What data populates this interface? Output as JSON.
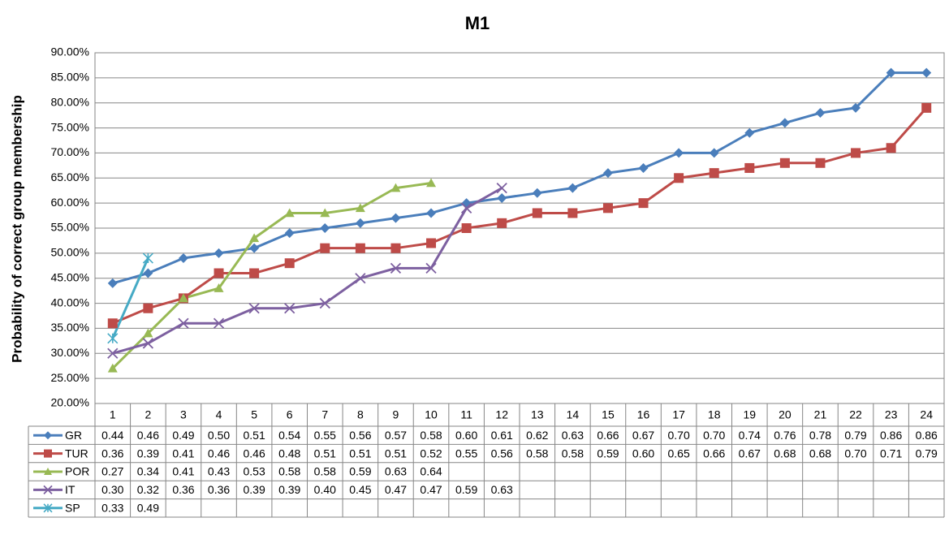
{
  "chart_data": {
    "type": "line",
    "title": "M1",
    "y_label": "Probability of correct group membership",
    "categories": [
      "1",
      "2",
      "3",
      "4",
      "5",
      "6",
      "7",
      "8",
      "9",
      "10",
      "11",
      "12",
      "13",
      "14",
      "15",
      "16",
      "17",
      "18",
      "19",
      "20",
      "21",
      "22",
      "23",
      "24"
    ],
    "ylim": [
      0.2,
      0.9
    ],
    "yticks": [
      {
        "value": 0.2,
        "label": "20.00%"
      },
      {
        "value": 0.25,
        "label": "25.00%"
      },
      {
        "value": 0.3,
        "label": "30.00%"
      },
      {
        "value": 0.35,
        "label": "35.00%"
      },
      {
        "value": 0.4,
        "label": "40.00%"
      },
      {
        "value": 0.45,
        "label": "45.00%"
      },
      {
        "value": 0.5,
        "label": "50.00%"
      },
      {
        "value": 0.55,
        "label": "55.00%"
      },
      {
        "value": 0.6,
        "label": "60.00%"
      },
      {
        "value": 0.65,
        "label": "65.00%"
      },
      {
        "value": 0.7,
        "label": "70.00%"
      },
      {
        "value": 0.75,
        "label": "75.00%"
      },
      {
        "value": 0.8,
        "label": "80.00%"
      },
      {
        "value": 0.85,
        "label": "85.00%"
      },
      {
        "value": 0.9,
        "label": "90.00%"
      }
    ],
    "grid": true,
    "series": [
      {
        "name": "GR",
        "color": "#4a7ebb",
        "marker": "diamond",
        "values": [
          0.44,
          0.46,
          0.49,
          0.5,
          0.51,
          0.54,
          0.55,
          0.56,
          0.57,
          0.58,
          0.6,
          0.61,
          0.62,
          0.63,
          0.66,
          0.67,
          0.7,
          0.7,
          0.74,
          0.76,
          0.78,
          0.79,
          0.86,
          0.86
        ],
        "value_labels": [
          "0.44",
          "0.46",
          "0.49",
          "0.50",
          "0.51",
          "0.54",
          "0.55",
          "0.56",
          "0.57",
          "0.58",
          "0.60",
          "0.61",
          "0.62",
          "0.63",
          "0.66",
          "0.67",
          "0.70",
          "0.70",
          "0.74",
          "0.76",
          "0.78",
          "0.79",
          "0.86",
          "0.86"
        ]
      },
      {
        "name": "TUR",
        "color": "#be4b48",
        "marker": "square",
        "values": [
          0.36,
          0.39,
          0.41,
          0.46,
          0.46,
          0.48,
          0.51,
          0.51,
          0.51,
          0.52,
          0.55,
          0.56,
          0.58,
          0.58,
          0.59,
          0.6,
          0.65,
          0.66,
          0.67,
          0.68,
          0.68,
          0.7,
          0.71,
          0.79
        ],
        "value_labels": [
          "0.36",
          "0.39",
          "0.41",
          "0.46",
          "0.46",
          "0.48",
          "0.51",
          "0.51",
          "0.51",
          "0.52",
          "0.55",
          "0.56",
          "0.58",
          "0.58",
          "0.59",
          "0.60",
          "0.65",
          "0.66",
          "0.67",
          "0.68",
          "0.68",
          "0.70",
          "0.71",
          "0.79"
        ]
      },
      {
        "name": "POR",
        "color": "#98b954",
        "marker": "triangle",
        "values": [
          0.27,
          0.34,
          0.41,
          0.43,
          0.53,
          0.58,
          0.58,
          0.59,
          0.63,
          0.64,
          null,
          null,
          null,
          null,
          null,
          null,
          null,
          null,
          null,
          null,
          null,
          null,
          null,
          null
        ],
        "value_labels": [
          "0.27",
          "0.34",
          "0.41",
          "0.43",
          "0.53",
          "0.58",
          "0.58",
          "0.59",
          "0.63",
          "0.64",
          null,
          null,
          null,
          null,
          null,
          null,
          null,
          null,
          null,
          null,
          null,
          null,
          null,
          null
        ]
      },
      {
        "name": "IT",
        "color": "#7d60a0",
        "marker": "x",
        "values": [
          0.3,
          0.32,
          0.36,
          0.36,
          0.39,
          0.39,
          0.4,
          0.45,
          0.47,
          0.47,
          0.59,
          0.63,
          null,
          null,
          null,
          null,
          null,
          null,
          null,
          null,
          null,
          null,
          null,
          null
        ],
        "value_labels": [
          "0.30",
          "0.32",
          "0.36",
          "0.36",
          "0.39",
          "0.39",
          "0.40",
          "0.45",
          "0.47",
          "0.47",
          "0.59",
          "0.63",
          null,
          null,
          null,
          null,
          null,
          null,
          null,
          null,
          null,
          null,
          null,
          null
        ]
      },
      {
        "name": "SP",
        "color": "#46aac5",
        "marker": "star",
        "values": [
          0.33,
          0.49,
          null,
          null,
          null,
          null,
          null,
          null,
          null,
          null,
          null,
          null,
          null,
          null,
          null,
          null,
          null,
          null,
          null,
          null,
          null,
          null,
          null,
          null
        ],
        "value_labels": [
          "0.33",
          "0.49",
          null,
          null,
          null,
          null,
          null,
          null,
          null,
          null,
          null,
          null,
          null,
          null,
          null,
          null,
          null,
          null,
          null,
          null,
          null,
          null,
          null,
          null
        ]
      }
    ]
  }
}
